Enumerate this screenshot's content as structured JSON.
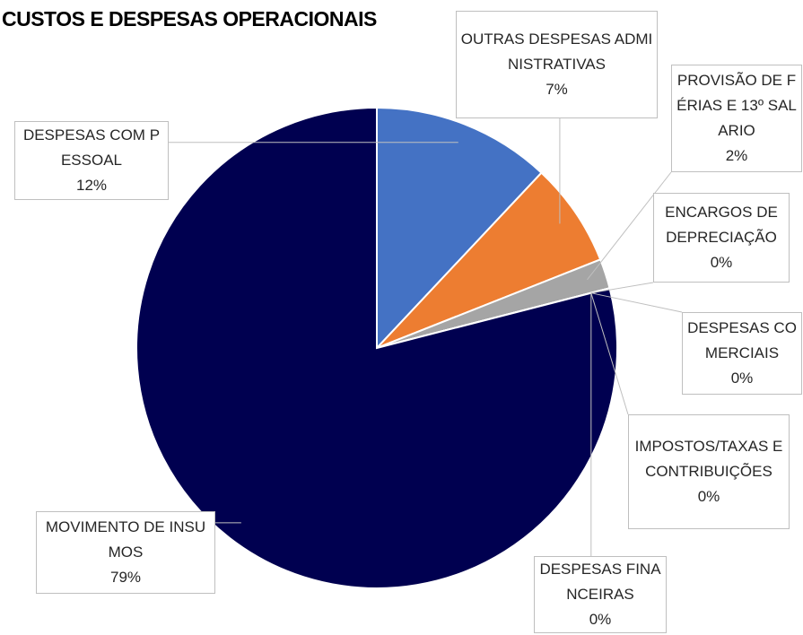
{
  "chart_data": {
    "type": "pie",
    "title": "CUSTOS E DESPESAS OPERACIONAIS",
    "categories": [
      "DESPESAS COM PESSOAL",
      "OUTRAS DESPESAS ADMINISTRATIVAS",
      "PROVISÃO DE FÉRIAS E 13º SALARIO",
      "ENCARGOS DE DEPRECIAÇÃO",
      "DESPESAS COMERCIAIS",
      "IMPOSTOS/TAXAS E CONTRIBUIÇÕES",
      "DESPESAS FINANCEIRAS",
      "MOVIMENTO DE INSUMOS"
    ],
    "values": [
      12,
      7,
      2,
      0,
      0,
      0,
      0,
      79
    ],
    "value_labels": [
      "12%",
      "7%",
      "2%",
      "0%",
      "0%",
      "0%",
      "0%",
      "79%"
    ],
    "colors": [
      "#4472c4",
      "#ed7d31",
      "#a5a5a5",
      "#ffc000",
      "#5b9bd5",
      "#70ad47",
      "#264478",
      "#000050"
    ]
  }
}
